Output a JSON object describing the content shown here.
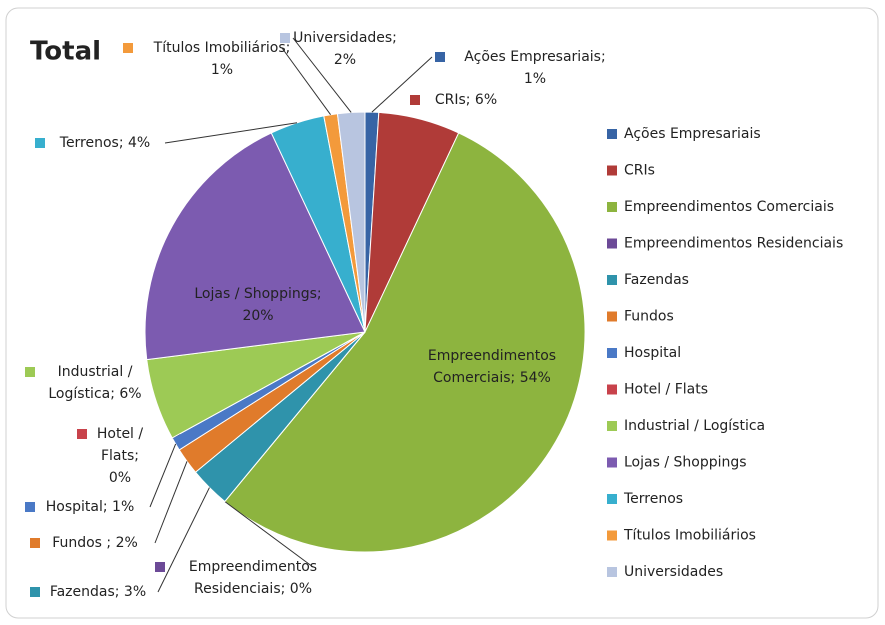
{
  "chart_data": {
    "type": "pie",
    "title": "Total",
    "categories": [
      "Ações Empresariais",
      "CRIs",
      "Empreendimentos Comerciais",
      "Empreendimentos Residenciais",
      "Fazendas",
      "Fundos",
      "Hospital",
      "Hotel / Flats",
      "Industrial / Logística",
      "Lojas / Shoppings",
      "Terrenos",
      "Títulos Imobiliários",
      "Universidades"
    ],
    "values": [
      1,
      6,
      54,
      0,
      3,
      2,
      1,
      0,
      6,
      20,
      4,
      1,
      2
    ],
    "value_labels": [
      "Ações Empresariais;\n1%",
      "CRIs; 6%",
      "Empreendimentos\nComerciais; 54%",
      "Empreendimentos\nResidenciais; 0%",
      "Fazendas; 3%",
      "Fundos ; 2%",
      "Hospital; 1%",
      "Hotel /\nFlats;\n0%",
      "Industrial /\nLogística; 6%",
      "Lojas / Shoppings;\n20%",
      "Terrenos; 4%",
      "Títulos Imobiliários;\n1%",
      "Universidades;\n2%"
    ],
    "colors": [
      "#3764a5",
      "#b03b38",
      "#8db43f",
      "#6c4a97",
      "#2f93ab",
      "#e07b2b",
      "#4a79c6",
      "#c8424b",
      "#9dca55",
      "#7c5bb0",
      "#37afce",
      "#f39a3b",
      "#b8c5e0"
    ],
    "legend": "right"
  }
}
